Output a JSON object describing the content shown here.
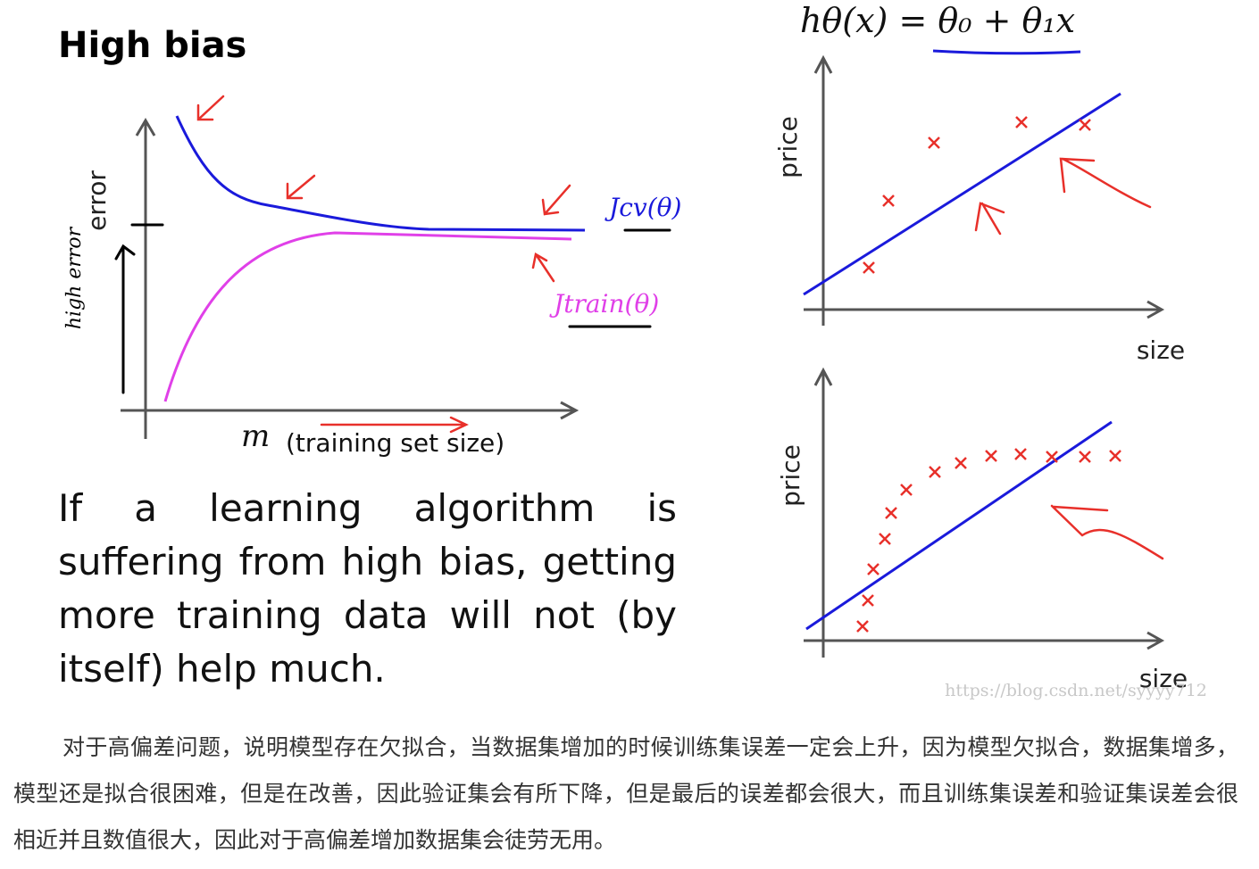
{
  "slide": {
    "title": "High bias",
    "learning_curve": {
      "y_label": "error",
      "x_symbol": "m",
      "x_label": "(training set size)",
      "annotation": "high error",
      "cv_label": "Jcv(θ)",
      "train_label": "Jtrain(θ)"
    },
    "statement": "If a learning algorithm is suffering from high bias, getting more training data will not (by itself) help much.",
    "hypothesis": "hθ(x) = θ₀ + θ₁x",
    "plots": [
      {
        "y_label": "price",
        "x_label": "size"
      },
      {
        "y_label": "price",
        "x_label": "size"
      }
    ]
  },
  "watermark": "https://blog.csdn.net/syyyy712",
  "caption": "对于高偏差问题，说明模型存在欠拟合，当数据集增加的时候训练集误差一定会上升，因为模型欠拟合，数据集增多，模型还是拟合很困难，但是在改善，因此验证集会有所下降，但是最后的误差都会很大，而且训练集误差和验证集误差会很相近并且数值很大，因此对于高偏差增加数据集会徒劳无用。"
}
